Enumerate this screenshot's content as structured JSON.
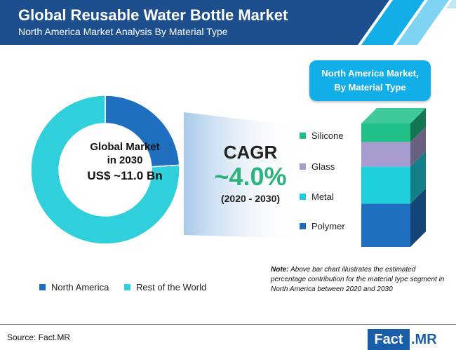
{
  "header": {
    "title": "Global Reusable Water Bottle Market",
    "subtitle": "North America Market Analysis By Material Type"
  },
  "badge": {
    "text": "North America Market,\nBy Material Type"
  },
  "donut_center": {
    "line1": "Global Market",
    "line2": "in 2030",
    "line3": "US$ ~11.0 Bn"
  },
  "cagr": {
    "label": "CAGR",
    "value": "~4.0%",
    "period": "(2020 - 2030)"
  },
  "note": {
    "prefix": "Note:",
    "text": " Above bar chart illustrates the estimated percentage contribution for the material type segment in North America between 2020 and 2030"
  },
  "footer": {
    "source": "Source: Fact.MR",
    "logo_left": "Fact",
    "logo_right": ".MR"
  },
  "colors": {
    "header_dark": "#1d4f8f",
    "header_accent": "#13aee8",
    "north_america": "#1e6fc0",
    "rest_of_world": "#2fd0dc",
    "silicone": "#1fbf86",
    "glass": "#a89bd0",
    "metal": "#1fcfdc",
    "polymer": "#1e6fc0"
  },
  "chart_data": [
    {
      "type": "pie",
      "style": "donut",
      "categories": [
        "North America",
        "Rest of the World"
      ],
      "values": [
        24,
        76
      ],
      "legend_position": "bottom"
    },
    {
      "type": "bar",
      "style": "stacked-3d",
      "categories": [
        "Polymer",
        "Metal",
        "Glass",
        "Silicone"
      ],
      "values": [
        35,
        30,
        20,
        15
      ],
      "legend_position": "left"
    }
  ]
}
